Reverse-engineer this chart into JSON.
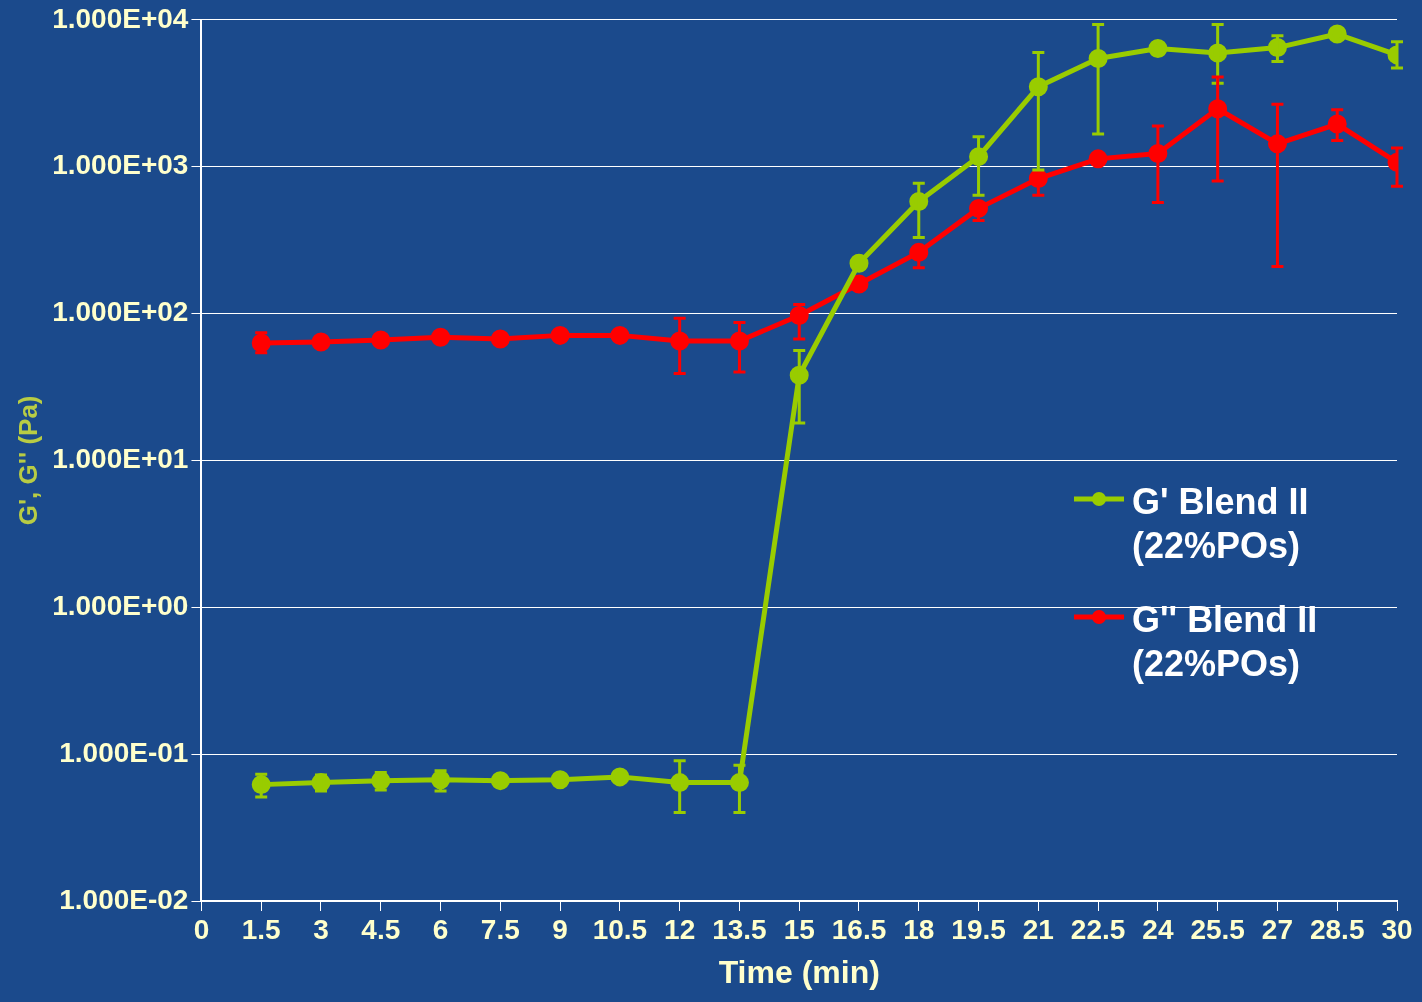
{
  "chart_data": {
    "type": "line",
    "xlabel": "Time (min)",
    "ylabel": "G', G'' (Pa)",
    "log": "y",
    "grid": "y",
    "legend": "right",
    "marker": "circle",
    "line_style": "solid",
    "xlim": [
      0,
      30
    ],
    "xticks": [
      0,
      1.5,
      3,
      4.5,
      6,
      7.5,
      9,
      10.5,
      12,
      13.5,
      15,
      16.5,
      18,
      19.5,
      21,
      22.5,
      24,
      25.5,
      27,
      28.5,
      30
    ],
    "ylim": [
      0.01,
      10000
    ],
    "yticks": [
      {
        "value": 0.01,
        "label": "1.000E-02"
      },
      {
        "value": 0.1,
        "label": "1.000E-01"
      },
      {
        "value": 1,
        "label": "1.000E+00"
      },
      {
        "value": 10,
        "label": "1.000E+01"
      },
      {
        "value": 100,
        "label": "1.000E+02"
      },
      {
        "value": 1000,
        "label": "1.000E+03"
      },
      {
        "value": 10000,
        "label": "1.000E+04"
      }
    ],
    "x": [
      1.5,
      3,
      4.5,
      6,
      7.5,
      9,
      10.5,
      12,
      13.5,
      15,
      16.5,
      18,
      19.5,
      21,
      22.5,
      24,
      25.5,
      27,
      28.5,
      30
    ],
    "series": [
      {
        "name": "G' Blend II (22%POs)",
        "color": "#99cc00",
        "values": [
          0.062,
          0.064,
          0.066,
          0.067,
          0.066,
          0.067,
          0.07,
          0.064,
          0.064,
          38,
          220,
          580,
          1170,
          3500,
          5450,
          6370,
          5950,
          6470,
          8000,
          5770
        ],
        "errors": [
          [
            0.051,
            0.073
          ],
          [
            0.056,
            0.072
          ],
          [
            0.057,
            0.075
          ],
          [
            0.056,
            0.077
          ],
          null,
          null,
          null,
          [
            0.04,
            0.09
          ],
          [
            0.04,
            0.084
          ],
          [
            18,
            56
          ],
          null,
          [
            330,
            770
          ],
          [
            640,
            1600
          ],
          [
            950,
            6000
          ],
          [
            1670,
            9300
          ],
          null,
          [
            3700,
            9300
          ],
          [
            5200,
            7800
          ],
          null,
          [
            4700,
            7100
          ]
        ]
      },
      {
        "name": "G'' Blend II (22%POs)",
        "color": "#ff0000",
        "values": [
          63,
          64,
          66,
          69,
          67,
          71,
          71,
          65,
          65,
          97,
          159,
          261,
          520,
          830,
          1130,
          1230,
          2480,
          1430,
          1950,
          1070
        ],
        "errors": [
          [
            54,
            74
          ],
          null,
          null,
          null,
          null,
          null,
          null,
          [
            39,
            93
          ],
          [
            40,
            87
          ],
          [
            67,
            115
          ],
          null,
          [
            205,
            261
          ],
          [
            430,
            520
          ],
          [
            640,
            830
          ],
          null,
          [
            570,
            1890
          ],
          [
            800,
            4080
          ],
          [
            209,
            2660
          ],
          [
            1510,
            2440
          ],
          [
            735,
            1340
          ]
        ]
      }
    ]
  }
}
